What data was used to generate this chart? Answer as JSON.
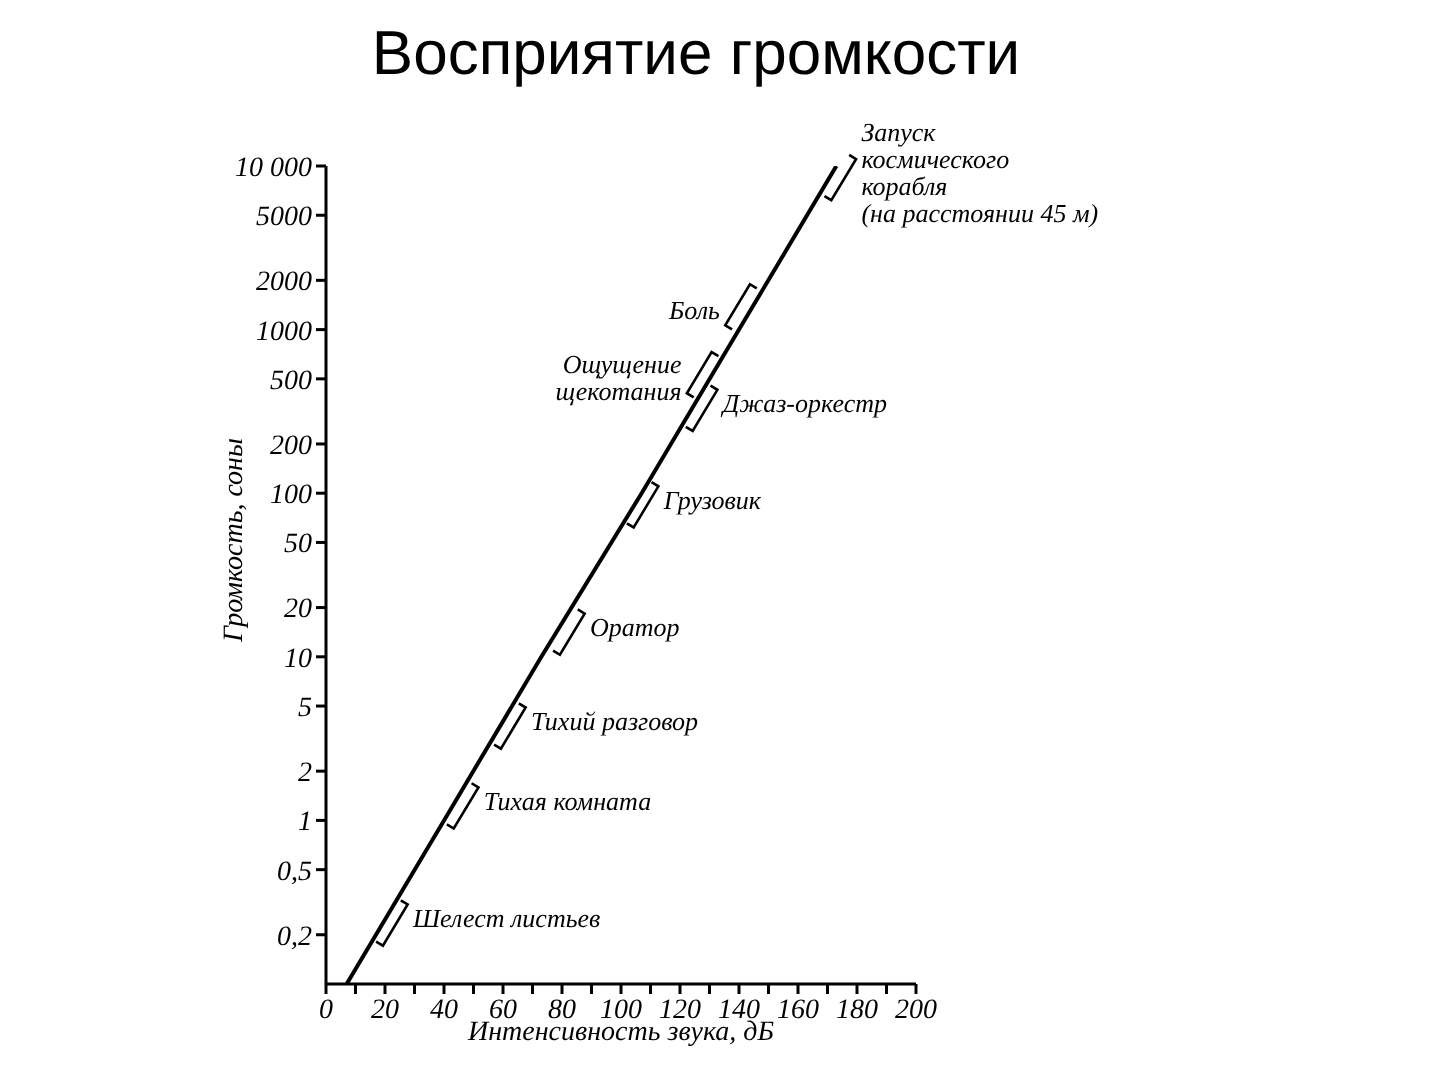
{
  "chart_data": {
    "type": "line",
    "title": "Восприятие громкости",
    "xlabel": "Интенсивность звука, дБ",
    "ylabel": "Громкость, соны",
    "x": [
      7,
      40,
      73,
      107,
      140,
      173
    ],
    "values": [
      0.1,
      1,
      10,
      100,
      1000,
      10000
    ],
    "color": "#000000",
    "xlim": [
      0,
      200
    ],
    "xticks": [
      0,
      {
        "value": 10,
        "label": null
      },
      20,
      {
        "value": 30,
        "label": null
      },
      40,
      {
        "value": 50,
        "label": null
      },
      60,
      {
        "value": 70,
        "label": null
      },
      80,
      {
        "value": 90,
        "label": null
      },
      100,
      {
        "value": 110,
        "label": null
      },
      120,
      {
        "value": 130,
        "label": null
      },
      140,
      {
        "value": 150,
        "label": null
      },
      160,
      {
        "value": 170,
        "label": null
      },
      180,
      {
        "value": 190,
        "label": null
      },
      200
    ],
    "ylim": [
      0.1,
      10000
    ],
    "yticks": [
      {
        "value": 0.2,
        "label": "0,2"
      },
      {
        "value": 0.5,
        "label": "0,5"
      },
      1,
      2,
      5,
      10,
      20,
      50,
      100,
      200,
      500,
      1000,
      2000,
      5000,
      {
        "value": 10000,
        "label": "10 000"
      }
    ],
    "log": "y",
    "annotations": [
      {
        "text": "Шелест листьев",
        "x": 20,
        "y": 0.25
      },
      {
        "text": "Тихая комната",
        "x": 44,
        "y": 1.3
      },
      {
        "text": "Тихий разговор",
        "x": 60,
        "y": 4
      },
      {
        "text": "Оратор",
        "x": 80,
        "y": 15
      },
      {
        "text": "Грузовик",
        "x": 105,
        "y": 90
      },
      {
        "text": "Джаз-оркестр",
        "x": 125,
        "y": 350
      },
      {
        "text": "Ощущение щекотания",
        "x": 130,
        "y": 500
      },
      {
        "text": "Боль",
        "x": 143,
        "y": 1300
      },
      {
        "text": "Запуск космического корабля (на расстоянии 45 м)",
        "x": 172,
        "y": 9000
      }
    ]
  }
}
